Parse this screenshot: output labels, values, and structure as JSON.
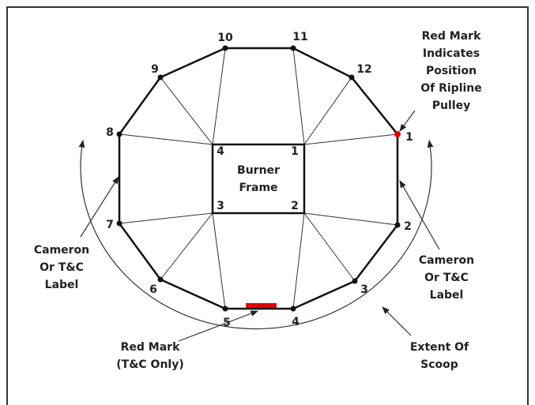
{
  "outer_vertices": [
    "10",
    "11",
    "12",
    "1",
    "2",
    "3",
    "4",
    "5",
    "6",
    "7",
    "8",
    "9"
  ],
  "inner_corners": [
    "4",
    "1",
    "2",
    "3"
  ],
  "frame_label": [
    "Burner",
    "Frame"
  ],
  "annotations": {
    "ripline_mark": [
      "Red Mark",
      "Indicates",
      "Position",
      "Of Ripline",
      "Pulley"
    ],
    "left_label": [
      "Cameron",
      "Or T&C",
      "Label"
    ],
    "right_label": [
      "Cameron",
      "Or T&C",
      "Label"
    ],
    "bottom_mark": [
      "Red Mark",
      "(T&C Only)"
    ],
    "scoop": [
      "Extent Of",
      "Scoop"
    ]
  }
}
